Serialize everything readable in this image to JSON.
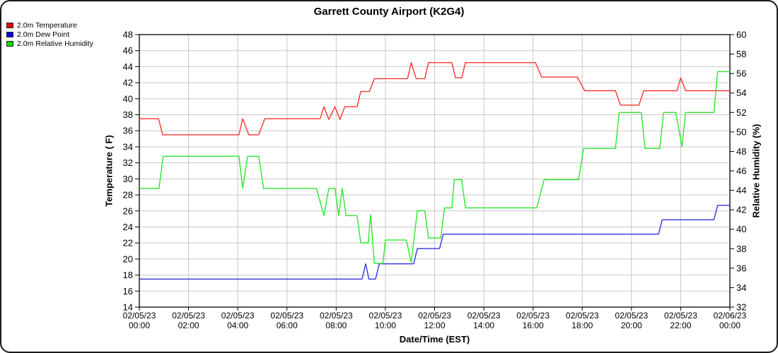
{
  "title": "Garrett County Airport (K2G4)",
  "legend": {
    "items": [
      {
        "label": "2.0m Temperature",
        "color": "#ee0000"
      },
      {
        "label": "2.0m Dew Point",
        "color": "#0000ee"
      },
      {
        "label": "2.0m Relative Humidity",
        "color": "#00dd00"
      }
    ]
  },
  "axes": {
    "x": {
      "label": "Date/Time (EST)",
      "ticks": [
        {
          "hour": 0,
          "date": "02/05/23",
          "time": "00:00"
        },
        {
          "hour": 2,
          "date": "02/05/23",
          "time": "02:00"
        },
        {
          "hour": 4,
          "date": "02/05/23",
          "time": "04:00"
        },
        {
          "hour": 6,
          "date": "02/05/23",
          "time": "06:00"
        },
        {
          "hour": 8,
          "date": "02/05/23",
          "time": "08:00"
        },
        {
          "hour": 10,
          "date": "02/05/23",
          "time": "10:00"
        },
        {
          "hour": 12,
          "date": "02/05/23",
          "time": "12:00"
        },
        {
          "hour": 14,
          "date": "02/05/23",
          "time": "14:00"
        },
        {
          "hour": 16,
          "date": "02/05/23",
          "time": "16:00"
        },
        {
          "hour": 18,
          "date": "02/05/23",
          "time": "18:00"
        },
        {
          "hour": 20,
          "date": "02/05/23",
          "time": "20:00"
        },
        {
          "hour": 22,
          "date": "02/05/23",
          "time": "22:00"
        },
        {
          "hour": 24,
          "date": "02/06/23",
          "time": "00:00"
        }
      ]
    },
    "y_left": {
      "label": "Temperature ( F)",
      "min": 14,
      "max": 48,
      "step": 2,
      "ticks": [
        48,
        46,
        44,
        42,
        40,
        38,
        36,
        34,
        32,
        30,
        28,
        26,
        24,
        22,
        20,
        18,
        16,
        14
      ]
    },
    "y_right": {
      "label": "Relative Humidity (%)",
      "min": 32,
      "max": 60,
      "step": 2,
      "ticks": [
        60,
        58,
        56,
        54,
        52,
        50,
        48,
        46,
        44,
        42,
        40,
        38,
        36,
        34,
        32
      ]
    }
  },
  "chart_data": {
    "type": "line",
    "title": "Garrett County Airport (K2G4)",
    "xlabel": "Date/Time (EST)",
    "x_unit": "hours from 02/05/23 00:00 EST",
    "x_range": [
      0,
      24
    ],
    "grid": true,
    "legend_position": "top-left",
    "grid_color": "#c8c8c8",
    "series": [
      {
        "name": "2.0m Temperature",
        "axis": "left",
        "units": "F",
        "color": "#ff3434",
        "points": [
          [
            0,
            37.5
          ],
          [
            0.78,
            37.5
          ],
          [
            0.95,
            35.5
          ],
          [
            4.05,
            35.5
          ],
          [
            4.2,
            37.5
          ],
          [
            4.45,
            35.5
          ],
          [
            4.85,
            35.5
          ],
          [
            5.1,
            37.5
          ],
          [
            7.35,
            37.5
          ],
          [
            7.5,
            39.0
          ],
          [
            7.7,
            37.4
          ],
          [
            7.95,
            39.0
          ],
          [
            8.15,
            37.4
          ],
          [
            8.35,
            39.0
          ],
          [
            8.85,
            39.0
          ],
          [
            9.0,
            40.9
          ],
          [
            9.35,
            40.9
          ],
          [
            9.55,
            42.5
          ],
          [
            10.9,
            42.5
          ],
          [
            11.05,
            44.5
          ],
          [
            11.25,
            42.5
          ],
          [
            11.6,
            42.5
          ],
          [
            11.75,
            44.5
          ],
          [
            12.7,
            44.5
          ],
          [
            12.85,
            42.6
          ],
          [
            13.1,
            42.6
          ],
          [
            13.25,
            44.5
          ],
          [
            16.1,
            44.5
          ],
          [
            16.35,
            42.7
          ],
          [
            17.8,
            42.7
          ],
          [
            18.1,
            41.0
          ],
          [
            19.35,
            41.0
          ],
          [
            19.55,
            39.2
          ],
          [
            20.3,
            39.2
          ],
          [
            20.5,
            41.0
          ],
          [
            21.85,
            41.0
          ],
          [
            22.0,
            42.6
          ],
          [
            22.2,
            41.0
          ],
          [
            24,
            41.0
          ]
        ]
      },
      {
        "name": "2.0m Dew Point",
        "axis": "left",
        "units": "F",
        "color": "#3434e0",
        "points": [
          [
            0,
            17.5
          ],
          [
            9.05,
            17.5
          ],
          [
            9.2,
            19.4
          ],
          [
            9.33,
            17.5
          ],
          [
            9.6,
            17.5
          ],
          [
            9.75,
            19.4
          ],
          [
            11.15,
            19.4
          ],
          [
            11.3,
            21.3
          ],
          [
            12.2,
            21.3
          ],
          [
            12.35,
            23.1
          ],
          [
            21.1,
            23.1
          ],
          [
            21.25,
            24.9
          ],
          [
            23.35,
            24.9
          ],
          [
            23.5,
            26.7
          ],
          [
            24,
            26.7
          ]
        ]
      },
      {
        "name": "2.0m Relative Humidity",
        "axis": "right",
        "units": "%",
        "color": "#2ee62e",
        "points": [
          [
            0,
            44.2
          ],
          [
            0.8,
            44.2
          ],
          [
            0.97,
            47.5
          ],
          [
            4.05,
            47.5
          ],
          [
            4.2,
            44.2
          ],
          [
            4.4,
            47.5
          ],
          [
            4.85,
            47.5
          ],
          [
            5.05,
            44.2
          ],
          [
            7.2,
            44.2
          ],
          [
            7.5,
            41.4
          ],
          [
            7.7,
            44.2
          ],
          [
            7.95,
            44.2
          ],
          [
            8.1,
            41.4
          ],
          [
            8.25,
            44.2
          ],
          [
            8.4,
            41.4
          ],
          [
            8.85,
            41.4
          ],
          [
            9.0,
            38.6
          ],
          [
            9.3,
            38.6
          ],
          [
            9.4,
            41.5
          ],
          [
            9.55,
            36.5
          ],
          [
            9.9,
            36.5
          ],
          [
            10.0,
            38.9
          ],
          [
            10.85,
            38.9
          ],
          [
            11.05,
            36.6
          ],
          [
            11.3,
            41.9
          ],
          [
            11.6,
            41.9
          ],
          [
            11.75,
            39.1
          ],
          [
            12.25,
            39.1
          ],
          [
            12.4,
            42.2
          ],
          [
            12.7,
            42.2
          ],
          [
            12.8,
            45.1
          ],
          [
            13.1,
            45.1
          ],
          [
            13.25,
            42.2
          ],
          [
            16.15,
            42.2
          ],
          [
            16.45,
            45.1
          ],
          [
            17.85,
            45.1
          ],
          [
            18.05,
            48.3
          ],
          [
            19.35,
            48.3
          ],
          [
            19.5,
            52.0
          ],
          [
            20.4,
            52.0
          ],
          [
            20.55,
            48.3
          ],
          [
            21.15,
            48.3
          ],
          [
            21.3,
            52.0
          ],
          [
            21.8,
            52.0
          ],
          [
            22.05,
            48.5
          ],
          [
            22.2,
            52.0
          ],
          [
            23.35,
            52.0
          ],
          [
            23.5,
            56.2
          ],
          [
            24,
            56.2
          ]
        ]
      }
    ]
  }
}
